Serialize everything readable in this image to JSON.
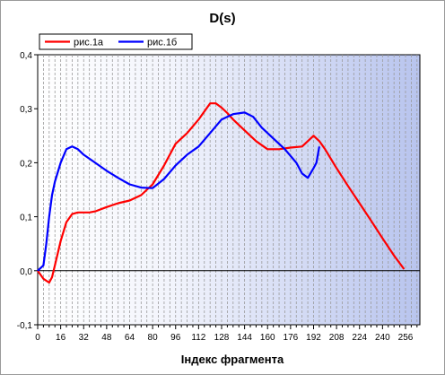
{
  "chart_data": {
    "type": "line",
    "title": "D(s)",
    "xlabel": "Індекс фрагмента",
    "ylabel": "",
    "xlim": [
      0,
      266
    ],
    "ylim": [
      -0.1,
      0.4
    ],
    "xticks": [
      0,
      16,
      32,
      48,
      64,
      80,
      96,
      112,
      128,
      144,
      160,
      176,
      192,
      208,
      224,
      240,
      256
    ],
    "yticks": [
      -0.1,
      0.0,
      0.1,
      0.2,
      0.3,
      0.4
    ],
    "ytick_labels": [
      "-0,1",
      "0,0",
      "0,1",
      "0,2",
      "0,3",
      "0,4"
    ],
    "grid": "vertical dashed",
    "legend": "top-left",
    "colors": {
      "series1": "#ff0000",
      "series2": "#0000ff",
      "background_right": "#b8c4ee"
    },
    "series": [
      {
        "name": "рис.1а",
        "x": [
          0,
          4,
          8,
          10,
          12,
          16,
          20,
          24,
          28,
          32,
          36,
          40,
          48,
          56,
          64,
          72,
          80,
          88,
          96,
          104,
          112,
          120,
          124,
          128,
          132,
          136,
          144,
          152,
          160,
          168,
          176,
          184,
          190,
          192,
          196,
          200,
          208,
          216,
          224,
          232,
          240,
          248,
          255
        ],
        "values": [
          0.0,
          -0.015,
          -0.022,
          -0.012,
          0.01,
          0.055,
          0.09,
          0.105,
          0.108,
          0.108,
          0.108,
          0.11,
          0.118,
          0.125,
          0.13,
          0.14,
          0.16,
          0.195,
          0.235,
          0.255,
          0.28,
          0.31,
          0.31,
          0.302,
          0.292,
          0.28,
          0.26,
          0.24,
          0.225,
          0.225,
          0.228,
          0.23,
          0.245,
          0.25,
          0.24,
          0.225,
          0.19,
          0.157,
          0.125,
          0.093,
          0.06,
          0.028,
          0.003
        ]
      },
      {
        "name": "рис.1б",
        "x": [
          0,
          4,
          6,
          8,
          10,
          12,
          16,
          20,
          24,
          28,
          32,
          40,
          48,
          56,
          64,
          72,
          80,
          88,
          96,
          104,
          112,
          120,
          128,
          136,
          144,
          150,
          156,
          164,
          172,
          180,
          184,
          188,
          192,
          194,
          196
        ],
        "values": [
          0.0,
          0.01,
          0.05,
          0.1,
          0.14,
          0.165,
          0.2,
          0.225,
          0.23,
          0.225,
          0.215,
          0.2,
          0.185,
          0.172,
          0.16,
          0.154,
          0.153,
          0.17,
          0.195,
          0.215,
          0.23,
          0.255,
          0.28,
          0.29,
          0.293,
          0.285,
          0.265,
          0.245,
          0.225,
          0.2,
          0.18,
          0.172,
          0.19,
          0.2,
          0.23
        ]
      }
    ]
  }
}
